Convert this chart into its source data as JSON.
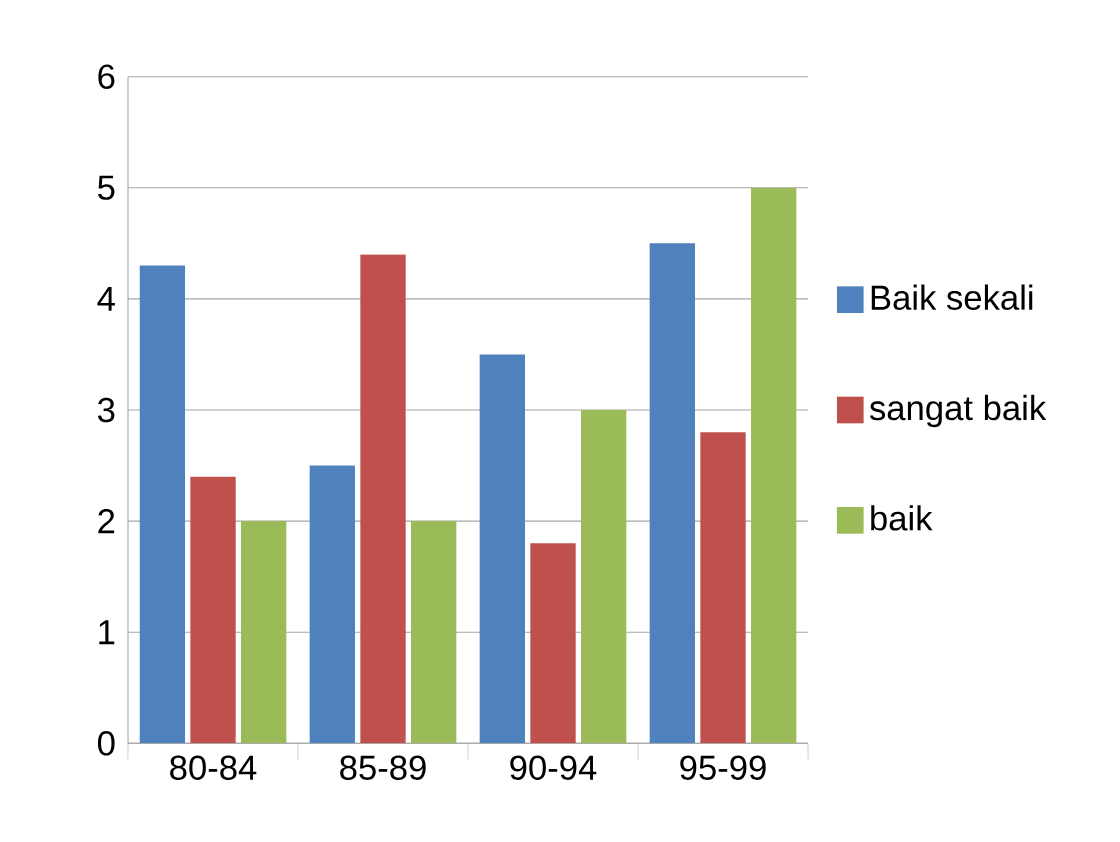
{
  "chart_data": {
    "type": "bar",
    "categories": [
      "80-84",
      "85-89",
      "90-94",
      "95-99"
    ],
    "series": [
      {
        "name": "Baik sekali",
        "color": "#4f81bd",
        "values": [
          4.3,
          2.5,
          3.5,
          4.5
        ]
      },
      {
        "name": "sangat baik",
        "color": "#c0504d",
        "values": [
          2.4,
          4.4,
          1.8,
          2.8
        ]
      },
      {
        "name": "baik",
        "color": "#9bbb59",
        "values": [
          2,
          2,
          3,
          5
        ]
      }
    ],
    "ylim": [
      0,
      6
    ],
    "yticks": [
      0,
      1,
      2,
      3,
      4,
      5,
      6
    ],
    "grid": "y",
    "legend": "right"
  }
}
